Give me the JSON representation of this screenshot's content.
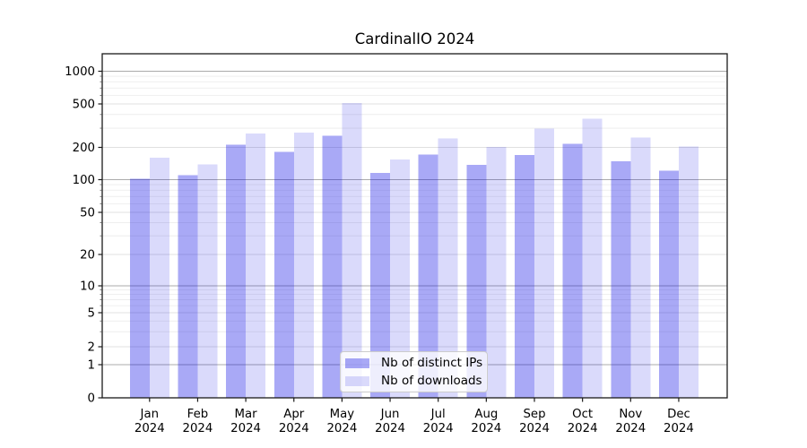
{
  "title": "CardinalIO 2024",
  "chart_data": {
    "type": "bar",
    "title": "CardinalIO 2024",
    "xlabel": "",
    "ylabel": "",
    "y_scale": "symlog",
    "ylim": [
      0,
      1400
    ],
    "grid": true,
    "legend_position": "lower center",
    "categories": [
      "Jan 2024",
      "Feb 2024",
      "Mar 2024",
      "Apr 2024",
      "May 2024",
      "Jun 2024",
      "Jul 2024",
      "Aug 2024",
      "Sep 2024",
      "Oct 2024",
      "Nov 2024",
      "Dec 2024"
    ],
    "y_ticks": [
      0,
      1,
      2,
      5,
      10,
      20,
      50,
      100,
      200,
      500,
      1000
    ],
    "series": [
      {
        "name": "Nb of distinct IPs",
        "color": "rgba(10,10,230,0.35)",
        "values": [
          102,
          110,
          212,
          182,
          255,
          116,
          171,
          137,
          169,
          215,
          148,
          121
        ]
      },
      {
        "name": "Nb of downloads",
        "color": "rgba(10,10,230,0.15)",
        "values": [
          161,
          139,
          268,
          274,
          512,
          154,
          241,
          202,
          298,
          365,
          247,
          203
        ]
      }
    ]
  },
  "colors": {
    "bar_ips": "rgba(10,10,230,0.35)",
    "bar_downloads": "rgba(10,10,230,0.15)",
    "grid_major": "#ababab",
    "grid_labeled_minor": "#e0e0e0",
    "grid_minor": "#ebebeb",
    "spine": "#1a1a1a",
    "text": "#000000"
  }
}
